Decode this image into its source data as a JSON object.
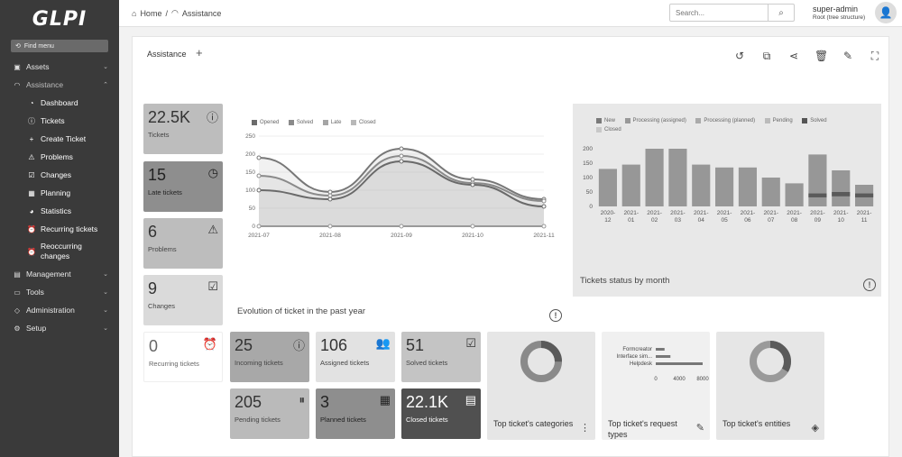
{
  "app": {
    "logo": "GLPI"
  },
  "sidebar": {
    "find_menu": "Find menu",
    "items": [
      {
        "label": "Assets",
        "icon": "cube-icon"
      },
      {
        "label": "Assistance",
        "icon": "headset-icon"
      },
      {
        "label": "Management",
        "icon": "wallet-icon"
      },
      {
        "label": "Tools",
        "icon": "briefcase-icon"
      },
      {
        "label": "Administration",
        "icon": "shield-icon"
      },
      {
        "label": "Setup",
        "icon": "gear-icon"
      }
    ],
    "sub_items": [
      {
        "label": "Dashboard",
        "icon": "dashboard-icon"
      },
      {
        "label": "Tickets",
        "icon": "ticket-icon"
      },
      {
        "label": "Create Ticket",
        "icon": "plus-icon"
      },
      {
        "label": "Problems",
        "icon": "warning-icon"
      },
      {
        "label": "Changes",
        "icon": "clipboard-icon"
      },
      {
        "label": "Planning",
        "icon": "calendar-icon"
      },
      {
        "label": "Statistics",
        "icon": "chart-pie-icon"
      },
      {
        "label": "Recurring tickets",
        "icon": "alarm-icon"
      },
      {
        "label": "Reoccurring changes",
        "icon": "alarm-icon"
      }
    ]
  },
  "header": {
    "breadcrumb_home": "Home",
    "breadcrumb_sep": "/",
    "breadcrumb_current": "Assistance",
    "search_placeholder": "Search...",
    "user_name": "super-admin",
    "user_entity": "Root (tree structure)"
  },
  "dashboard": {
    "tab_label": "Assistance",
    "tab_add": "+",
    "cards_left": [
      {
        "value": "22.5K",
        "label": "Tickets",
        "icon": "!"
      },
      {
        "value": "15",
        "label": "Late tickets",
        "icon": "◷"
      },
      {
        "value": "6",
        "label": "Problems",
        "icon": "⚠"
      },
      {
        "value": "9",
        "label": "Changes",
        "icon": "📋"
      }
    ],
    "cards_bottom": [
      {
        "value": "0",
        "label": "Recurring tickets",
        "icon": "⏰"
      },
      {
        "value": "25",
        "label": "Incoming tickets",
        "icon": "!"
      },
      {
        "value": "106",
        "label": "Assigned tickets",
        "icon": "👥"
      },
      {
        "value": "51",
        "label": "Solved tickets",
        "icon": "☑"
      },
      {
        "value": "205",
        "label": "Pending tickets",
        "icon": "⏸"
      },
      {
        "value": "3",
        "label": "Planned tickets",
        "icon": "📅"
      },
      {
        "value": "22.1K",
        "label": "Closed tickets",
        "icon": "🗃"
      }
    ],
    "small_charts": [
      {
        "title": "Top ticket's categories",
        "icon": "⋮"
      },
      {
        "title": "Top ticket's request types",
        "icon": "✎"
      },
      {
        "title": "Top ticket's entities",
        "icon": "◈"
      }
    ]
  },
  "chart_data": [
    {
      "type": "line",
      "title": "Evolution of ticket in the past year",
      "x": [
        "2021-07",
        "2021-08",
        "2021-09",
        "2021-10",
        "2021-11"
      ],
      "ylim": [
        0,
        250
      ],
      "yticks": [
        0,
        50,
        100,
        150,
        200,
        250
      ],
      "series": [
        {
          "name": "Opened",
          "values": [
            190,
            95,
            215,
            130,
            75
          ]
        },
        {
          "name": "Solved",
          "values": [
            140,
            85,
            195,
            120,
            70
          ]
        },
        {
          "name": "Late",
          "values": [
            100,
            75,
            180,
            115,
            55
          ]
        },
        {
          "name": "Closed",
          "values": [
            0,
            0,
            0,
            0,
            0
          ]
        }
      ],
      "legend": "top-left"
    },
    {
      "type": "bar",
      "title": "Tickets status by month",
      "categories": [
        "2020-12",
        "2021-01",
        "2021-02",
        "2021-03",
        "2021-04",
        "2021-05",
        "2021-06",
        "2021-07",
        "2021-08",
        "2021-09",
        "2021-10",
        "2021-11"
      ],
      "ylim": [
        0,
        200
      ],
      "yticks": [
        0,
        50,
        100,
        150,
        200
      ],
      "series": [
        {
          "name": "New",
          "values": [
            130,
            145,
            200,
            200,
            145,
            135,
            135,
            100,
            80,
            180,
            125,
            75
          ]
        },
        {
          "name": "Processing (assigned)",
          "values": [
            0,
            0,
            0,
            0,
            0,
            0,
            0,
            0,
            0,
            0,
            0,
            0
          ]
        },
        {
          "name": "Processing (planned)",
          "values": [
            0,
            0,
            0,
            0,
            0,
            0,
            0,
            0,
            0,
            0,
            0,
            0
          ]
        },
        {
          "name": "Pending",
          "values": [
            0,
            0,
            0,
            0,
            0,
            0,
            0,
            0,
            0,
            0,
            0,
            0
          ]
        },
        {
          "name": "Solved",
          "values": [
            0,
            0,
            0,
            0,
            0,
            0,
            0,
            0,
            0,
            45,
            50,
            45
          ]
        },
        {
          "name": "Closed",
          "values": [
            0,
            0,
            0,
            0,
            0,
            0,
            0,
            0,
            0,
            0,
            0,
            0
          ]
        }
      ],
      "legend": "top"
    },
    {
      "type": "bar",
      "title": "Top ticket's request types",
      "categories": [
        "Formcreator",
        "Interface sim...",
        "Helpdesk"
      ],
      "xticks": [
        0,
        4000,
        8000
      ],
      "values": [
        1500,
        2500,
        8000
      ]
    }
  ]
}
